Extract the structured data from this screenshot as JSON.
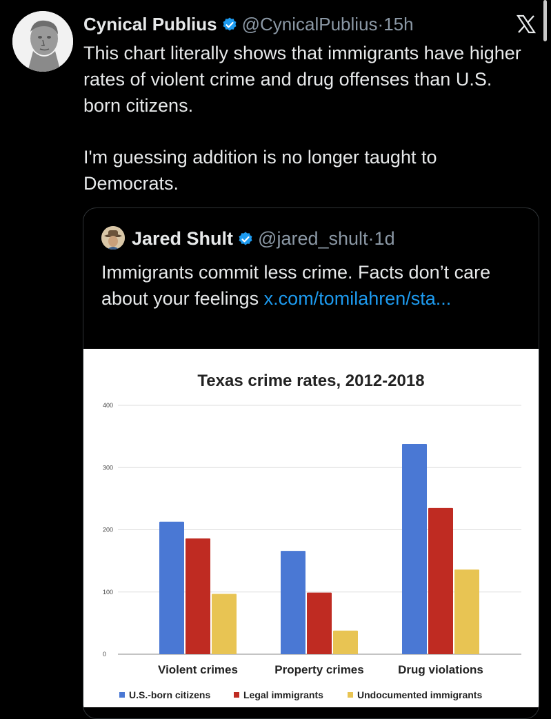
{
  "tweet": {
    "author_name": "Cynical Publius",
    "handle": "@CynicalPublius",
    "dot": "·",
    "time": "15h",
    "paragraph1": "This chart literally shows that immigrants have higher rates of violent crime and drug offenses than U.S. born citizens.",
    "paragraph2": "I'm guessing addition is no longer taught to Democrats."
  },
  "quote": {
    "author_name": "Jared Shult",
    "handle": "@jared_shult",
    "dot": "·",
    "time": "1d",
    "text": "Immigrants commit less crime. Facts don’t care about your feelings ",
    "link": "x.com/tomilahren/sta..."
  },
  "colors": {
    "verified": "#1d9bf0",
    "link": "#1d9bf0",
    "series_us": "#4a78d4",
    "series_legal": "#bf2b22",
    "series_undoc": "#e8c453"
  },
  "chart_data": {
    "type": "bar",
    "title": "Texas crime rates, 2012-2018",
    "categories": [
      "Violent crimes",
      "Property crimes",
      "Drug violations"
    ],
    "series": [
      {
        "name": "U.S.-born citizens",
        "values": [
          213,
          166,
          338
        ]
      },
      {
        "name": "Legal immigrants",
        "values": [
          186,
          99,
          235
        ]
      },
      {
        "name": "Undocumented immigrants",
        "values": [
          97,
          38,
          136
        ]
      }
    ],
    "yticks": [
      "0",
      "100",
      "200",
      "300",
      "400"
    ],
    "ylim": [
      0,
      400
    ],
    "grid": true,
    "legend": "bottom"
  }
}
